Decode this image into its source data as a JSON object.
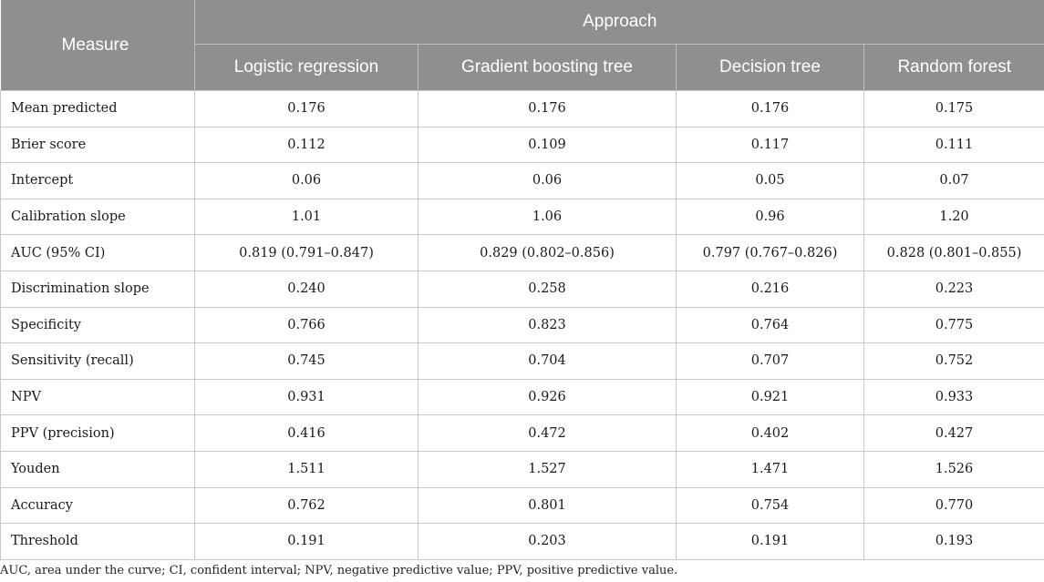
{
  "header": {
    "measure": "Measure",
    "approach": "Approach",
    "columns": [
      "Logistic regression",
      "Gradient boosting tree",
      "Decision tree",
      "Random forest"
    ]
  },
  "rows": [
    {
      "label": "Mean predicted",
      "values": [
        "0.176",
        "0.176",
        "0.176",
        "0.175"
      ]
    },
    {
      "label": "Brier score",
      "values": [
        "0.112",
        "0.109",
        "0.117",
        "0.111"
      ]
    },
    {
      "label": "Intercept",
      "values": [
        "0.06",
        "0.06",
        "0.05",
        "0.07"
      ]
    },
    {
      "label": "Calibration slope",
      "values": [
        "1.01",
        "1.06",
        "0.96",
        "1.20"
      ]
    },
    {
      "label": "AUC (95% CI)",
      "values": [
        "0.819 (0.791–0.847)",
        "0.829 (0.802–0.856)",
        "0.797 (0.767–0.826)",
        "0.828 (0.801–0.855)"
      ]
    },
    {
      "label": "Discrimination slope",
      "values": [
        "0.240",
        "0.258",
        "0.216",
        "0.223"
      ]
    },
    {
      "label": "Specificity",
      "values": [
        "0.766",
        "0.823",
        "0.764",
        "0.775"
      ]
    },
    {
      "label": "Sensitivity (recall)",
      "values": [
        "0.745",
        "0.704",
        "0.707",
        "0.752"
      ]
    },
    {
      "label": "NPV",
      "values": [
        "0.931",
        "0.926",
        "0.921",
        "0.933"
      ]
    },
    {
      "label": "PPV (precision)",
      "values": [
        "0.416",
        "0.472",
        "0.402",
        "0.427"
      ]
    },
    {
      "label": "Youden",
      "values": [
        "1.511",
        "1.527",
        "1.471",
        "1.526"
      ]
    },
    {
      "label": "Accuracy",
      "values": [
        "0.762",
        "0.801",
        "0.754",
        "0.770"
      ]
    },
    {
      "label": "Threshold",
      "values": [
        "0.191",
        "0.203",
        "0.191",
        "0.193"
      ]
    }
  ],
  "footnote": "AUC, area under the curve; CI, confident interval; NPV, negative predictive value; PPV, positive predictive value.",
  "colors": {
    "header_bg": "#8f8f8f",
    "header_text": "#ffffff",
    "grid": "#c8c8c8"
  }
}
